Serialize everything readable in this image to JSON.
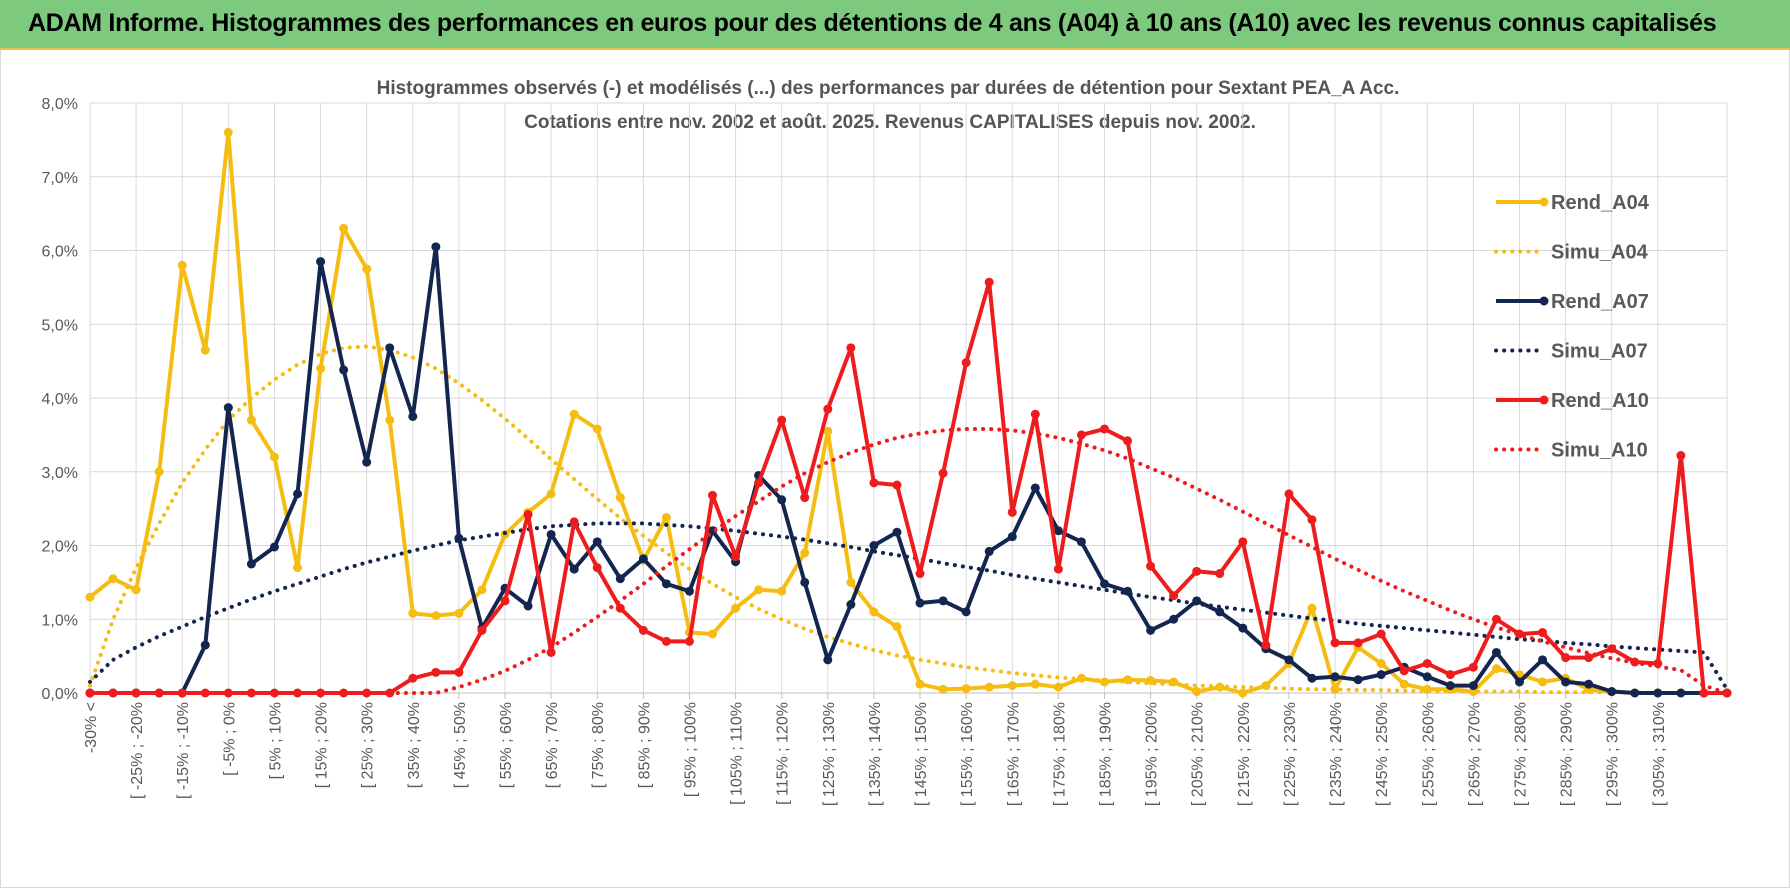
{
  "banner": {
    "title": "ADAM Informe. Histogrammes des performances en euros pour des détentions de 4 ans (A04) à 10 ans (A10) avec les revenus connus capitalisés"
  },
  "chart_data": {
    "type": "line",
    "title": "Histogrammes observés (-) et modélisés (...) des performances par durées de détention pour Sextant PEA_A Acc.",
    "subtitle": "Cotations entre nov. 2002 et août. 2025. Revenus CAPITALISES depuis nov. 2002.",
    "xlabel": "",
    "ylabel": "",
    "ylim": [
      0,
      8
    ],
    "yticks": [
      "0,0%",
      "1,0%",
      "2,0%",
      "3,0%",
      "4,0%",
      "5,0%",
      "6,0%",
      "7,0%",
      "8,0%"
    ],
    "grid": true,
    "legend_position": "right",
    "x_tick_labels": [
      "-30% <",
      "[ -25% ; -20%",
      "[ -15% ; -10%",
      "[ -5% ; 0%",
      "[ 5% ; 10%",
      "[ 15% ; 20%",
      "[ 25% ; 30%",
      "[ 35% ; 40%",
      "[ 45% ; 50%",
      "[ 55% ; 60%",
      "[ 65% ; 70%",
      "[ 75% ; 80%",
      "[ 85% ; 90%",
      "[ 95% ; 100%",
      "[ 105% ; 110%",
      "[ 115% ; 120%",
      "[ 125% ; 130%",
      "[ 135% ; 140%",
      "[ 145% ; 150%",
      "[ 155% ; 160%",
      "[ 165% ; 170%",
      "[ 175% ; 180%",
      "[ 185% ; 190%",
      "[ 195% ; 200%",
      "[ 205% ; 210%",
      "[ 215% ; 220%",
      "[ 225% ; 230%",
      "[ 235% ; 240%",
      "[ 245% ; 250%",
      "[ 255% ; 260%",
      "[ 265% ; 270%",
      "[ 275% ; 280%",
      "[ 285% ; 290%",
      "[ 295% ; 300%",
      "[ 305% ; 310%"
    ],
    "series": [
      {
        "name": "Rend_A04",
        "color": "#f5bd12",
        "style": "solid",
        "values": [
          1.3,
          1.55,
          1.4,
          3.0,
          5.8,
          4.65,
          7.6,
          3.7,
          3.2,
          1.7,
          4.4,
          6.3,
          5.75,
          3.7,
          1.08,
          1.05,
          1.08,
          1.4,
          2.15,
          2.45,
          2.7,
          3.78,
          3.58,
          2.65,
          1.8,
          2.38,
          0.82,
          0.8,
          1.15,
          1.4,
          1.38,
          1.9,
          3.55,
          1.5,
          1.1,
          0.9,
          0.12,
          0.05,
          0.06,
          0.08,
          0.1,
          0.12,
          0.08,
          0.2,
          0.15,
          0.18,
          0.17,
          0.15,
          0.02,
          0.08,
          0.0,
          0.1,
          0.4,
          1.15,
          0.05,
          0.62,
          0.4,
          0.12,
          0.05,
          0.05,
          0.02,
          0.33,
          0.25,
          0.15,
          0.2,
          0.05,
          0.02,
          0.0,
          0.0,
          0.0,
          0.0,
          0.0
        ]
      },
      {
        "name": "Simu_A04",
        "color": "#f5bd12",
        "style": "dotted",
        "values": [
          0.1,
          1.0,
          1.7,
          2.3,
          2.85,
          3.3,
          3.7,
          4.0,
          4.25,
          4.45,
          4.6,
          4.68,
          4.7,
          4.65,
          4.55,
          4.4,
          4.2,
          3.97,
          3.72,
          3.45,
          3.17,
          2.9,
          2.63,
          2.37,
          2.13,
          1.9,
          1.68,
          1.48,
          1.3,
          1.14,
          1.0,
          0.87,
          0.76,
          0.67,
          0.58,
          0.51,
          0.45,
          0.4,
          0.35,
          0.31,
          0.27,
          0.24,
          0.21,
          0.19,
          0.17,
          0.15,
          0.13,
          0.12,
          0.1,
          0.09,
          0.08,
          0.07,
          0.06,
          0.05,
          0.05,
          0.04,
          0.04,
          0.03,
          0.03,
          0.02,
          0.02,
          0.02,
          0.02,
          0.01,
          0.01,
          0.01,
          0.01,
          0.01,
          0.0,
          0.0,
          0.0,
          0.0
        ]
      },
      {
        "name": "Rend_A07",
        "color": "#13264f",
        "style": "solid",
        "values": [
          0.0,
          0.0,
          0.0,
          0.0,
          0.0,
          0.65,
          3.87,
          1.75,
          1.98,
          2.7,
          5.85,
          4.38,
          3.13,
          4.68,
          3.75,
          6.05,
          2.1,
          0.88,
          1.42,
          1.18,
          2.15,
          1.68,
          2.05,
          1.55,
          1.82,
          1.48,
          1.38,
          2.2,
          1.78,
          2.95,
          2.62,
          1.5,
          0.45,
          1.2,
          2.0,
          2.18,
          1.22,
          1.25,
          1.1,
          1.92,
          2.12,
          2.78,
          2.2,
          2.05,
          1.48,
          1.38,
          0.85,
          1.0,
          1.25,
          1.1,
          0.88,
          0.6,
          0.45,
          0.2,
          0.22,
          0.18,
          0.25,
          0.35,
          0.22,
          0.1,
          0.1,
          0.55,
          0.15,
          0.45,
          0.15,
          0.12,
          0.02,
          0.0,
          0.0,
          0.0,
          0.0,
          0.0
        ]
      },
      {
        "name": "Simu_A07",
        "color": "#13264f",
        "style": "dotted",
        "values": [
          0.15,
          0.45,
          0.62,
          0.77,
          0.9,
          1.03,
          1.15,
          1.27,
          1.38,
          1.48,
          1.58,
          1.68,
          1.77,
          1.85,
          1.93,
          2.0,
          2.07,
          2.12,
          2.17,
          2.22,
          2.26,
          2.28,
          2.3,
          2.3,
          2.3,
          2.28,
          2.26,
          2.23,
          2.2,
          2.16,
          2.12,
          2.08,
          2.03,
          1.98,
          1.92,
          1.87,
          1.82,
          1.76,
          1.71,
          1.66,
          1.6,
          1.55,
          1.5,
          1.45,
          1.4,
          1.35,
          1.3,
          1.26,
          1.21,
          1.17,
          1.13,
          1.09,
          1.05,
          1.01,
          0.98,
          0.94,
          0.91,
          0.88,
          0.85,
          0.82,
          0.79,
          0.76,
          0.73,
          0.71,
          0.68,
          0.66,
          0.63,
          0.61,
          0.59,
          0.57,
          0.55,
          0.05
        ]
      },
      {
        "name": "Rend_A10",
        "color": "#ee1c1c",
        "style": "solid",
        "values": [
          0.0,
          0.0,
          0.0,
          0.0,
          0.0,
          0.0,
          0.0,
          0.0,
          0.0,
          0.0,
          0.0,
          0.0,
          0.0,
          0.0,
          0.2,
          0.28,
          0.28,
          0.85,
          1.25,
          2.42,
          0.55,
          2.32,
          1.7,
          1.15,
          0.85,
          0.7,
          0.7,
          2.68,
          1.85,
          2.85,
          3.7,
          2.65,
          3.85,
          4.68,
          2.85,
          2.82,
          1.62,
          2.98,
          4.48,
          5.57,
          2.45,
          3.78,
          1.68,
          3.5,
          3.58,
          3.42,
          1.72,
          1.32,
          1.65,
          1.62,
          2.05,
          0.65,
          2.7,
          2.35,
          0.68,
          0.68,
          0.8,
          0.3,
          0.4,
          0.25,
          0.35,
          1.0,
          0.8,
          0.82,
          0.48,
          0.48,
          0.6,
          0.42,
          0.4,
          3.22,
          0.0,
          0.0
        ]
      },
      {
        "name": "Simu_A10",
        "color": "#ee1c1c",
        "style": "dotted",
        "values": [
          0.0,
          0.0,
          0.0,
          0.0,
          0.0,
          0.0,
          0.0,
          0.0,
          0.0,
          0.0,
          0.0,
          0.0,
          0.0,
          0.0,
          0.0,
          0.0,
          0.08,
          0.18,
          0.3,
          0.45,
          0.62,
          0.82,
          1.03,
          1.25,
          1.48,
          1.72,
          1.95,
          2.18,
          2.4,
          2.6,
          2.8,
          2.98,
          3.13,
          3.26,
          3.37,
          3.46,
          3.52,
          3.56,
          3.58,
          3.58,
          3.56,
          3.52,
          3.46,
          3.38,
          3.29,
          3.18,
          3.05,
          2.92,
          2.77,
          2.62,
          2.46,
          2.3,
          2.14,
          1.98,
          1.82,
          1.67,
          1.52,
          1.38,
          1.25,
          1.12,
          1.0,
          0.89,
          0.79,
          0.7,
          0.62,
          0.54,
          0.47,
          0.41,
          0.36,
          0.31,
          0.1,
          0.0
        ]
      }
    ]
  }
}
